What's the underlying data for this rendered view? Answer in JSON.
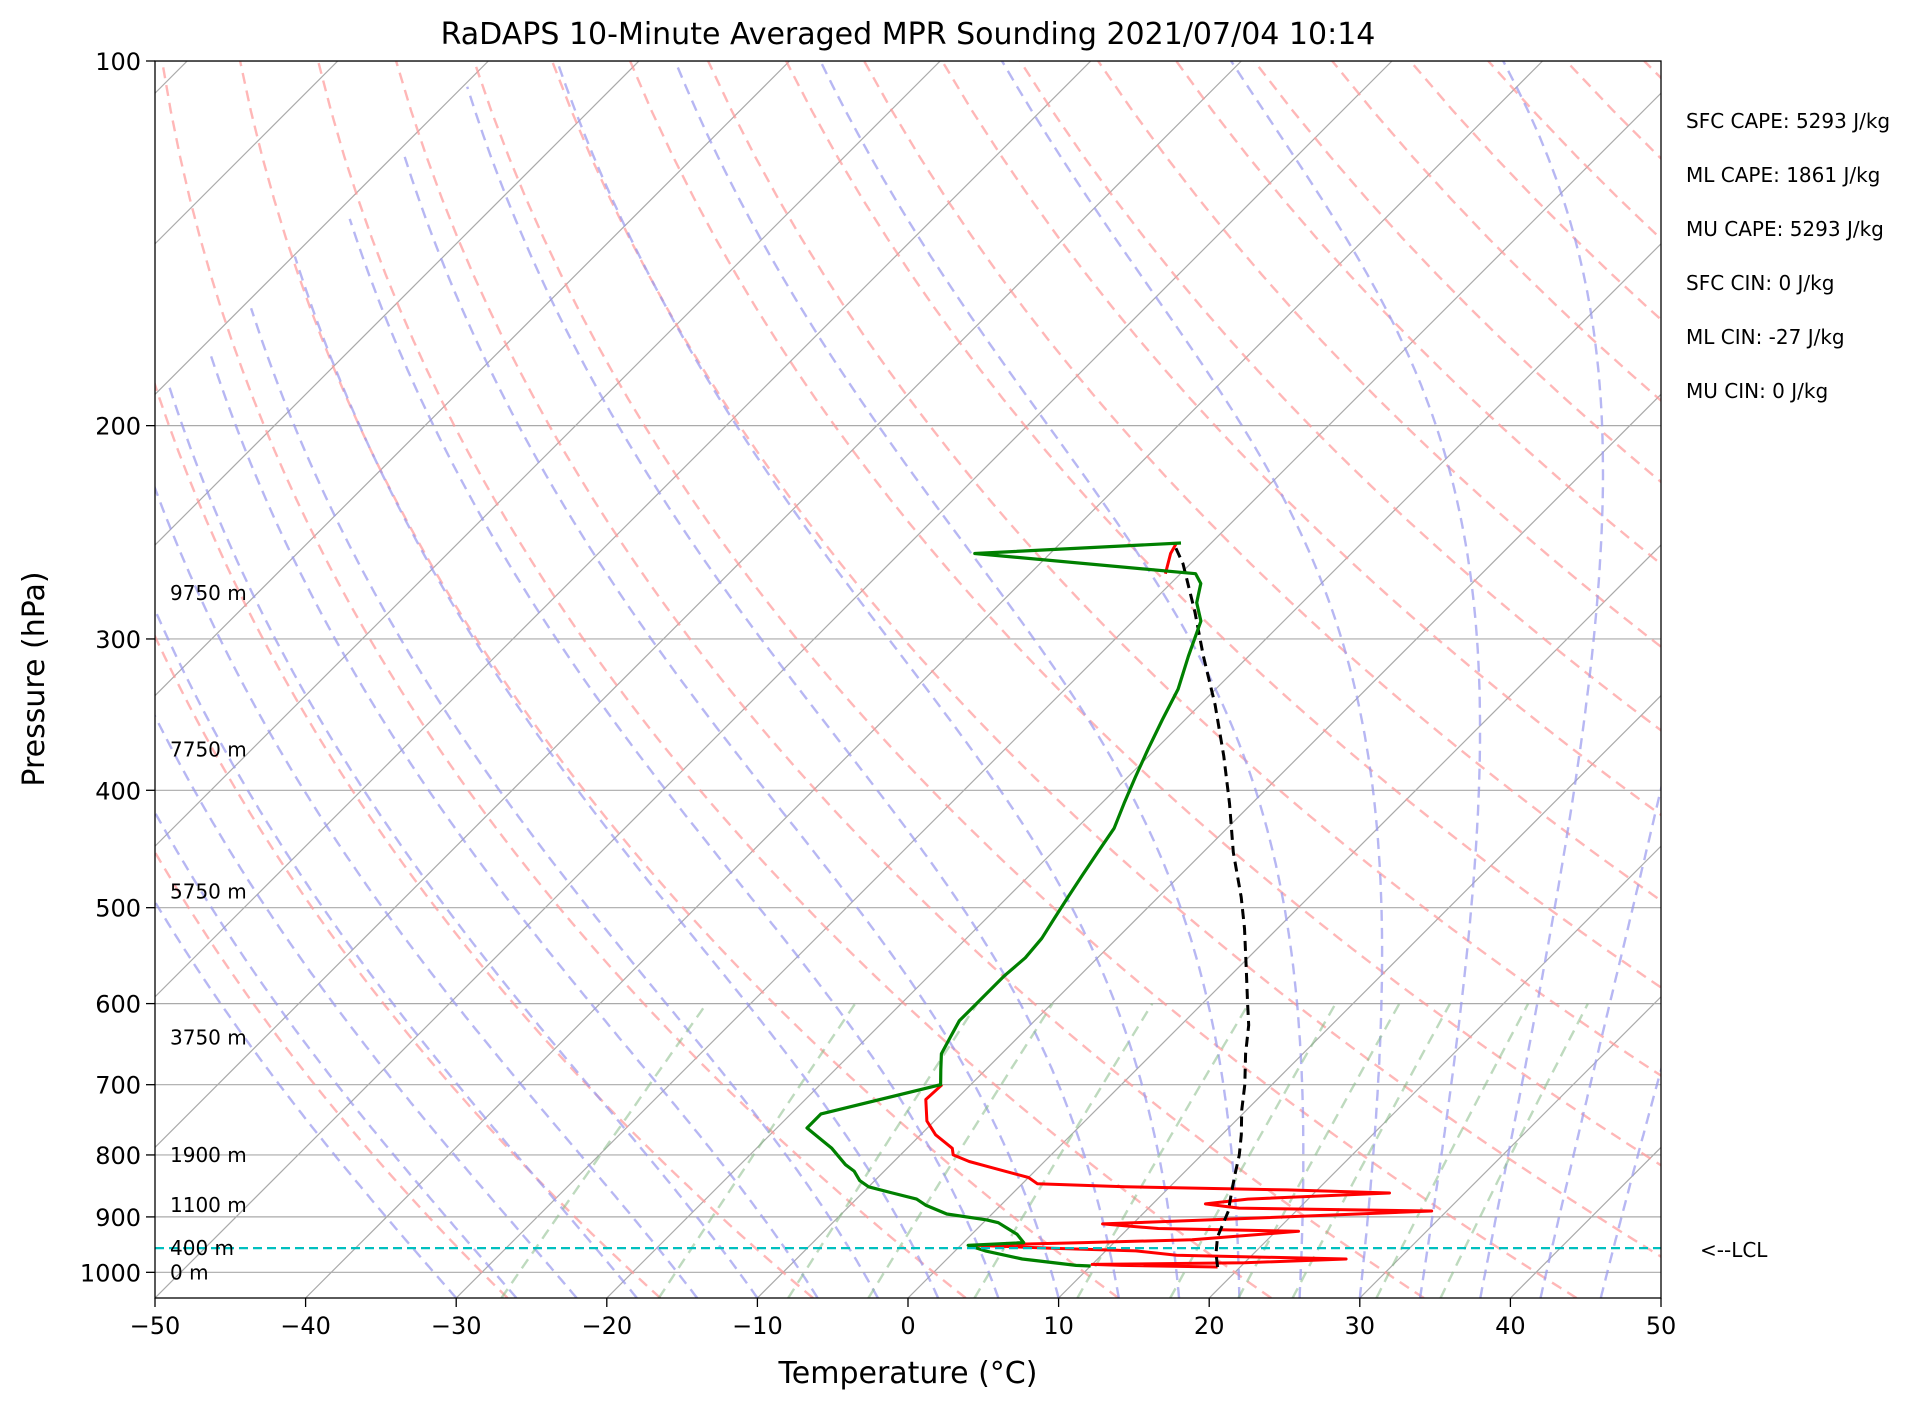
{
  "chart_data": {
    "type": "line",
    "title": "RaDAPS 10-Minute Averaged MPR Sounding 2021/07/04 10:14",
    "xlabel": "Temperature (°C)",
    "ylabel": "Pressure (hPa)",
    "xlim": [
      -50,
      50
    ],
    "ylim": [
      1050,
      100
    ],
    "y_scale": "log",
    "skew": "skew-T",
    "grid": true,
    "x_ticks": [
      -50,
      -40,
      -30,
      -20,
      -10,
      0,
      10,
      20,
      30,
      40,
      50
    ],
    "x_tick_labels": [
      "−50",
      "−40",
      "−30",
      "−20",
      "−10",
      "0",
      "10",
      "20",
      "30",
      "40",
      "50"
    ],
    "y_ticks": [
      100,
      200,
      300,
      400,
      500,
      600,
      700,
      800,
      900,
      1000
    ],
    "y_tick_labels": [
      "100",
      "200",
      "300",
      "400",
      "500",
      "600",
      "700",
      "800",
      "900",
      "1000"
    ],
    "colors": {
      "temperature": "#ff0000",
      "dewpoint": "#008000",
      "parcel": "#000000",
      "lcl": "#00bfbf",
      "isotherm": "#aaaaaa",
      "dry_adiabat": "#ff9999",
      "moist_adiabat": "#9999ee",
      "mixing_ratio": "#88bb88"
    },
    "series": [
      {
        "key": "temperature",
        "points": [
          [
            18.5,
            990
          ],
          [
            12,
            987
          ],
          [
            10,
            985
          ],
          [
            20,
            982
          ],
          [
            26.5,
            975
          ],
          [
            15,
            968
          ],
          [
            12,
            960
          ],
          [
            6,
            955
          ],
          [
            1,
            950
          ],
          [
            8,
            945
          ],
          [
            15,
            940
          ],
          [
            21.5,
            925
          ],
          [
            12,
            920
          ],
          [
            8,
            912
          ],
          [
            15,
            905
          ],
          [
            29,
            890
          ],
          [
            16,
            885
          ],
          [
            13.5,
            878
          ],
          [
            16,
            870
          ],
          [
            25,
            860
          ],
          [
            18,
            855
          ],
          [
            7,
            850
          ],
          [
            1,
            845
          ],
          [
            0,
            835
          ],
          [
            -3,
            820
          ],
          [
            -5,
            810
          ],
          [
            -6.5,
            800
          ],
          [
            -7,
            790
          ],
          [
            -9,
            770
          ],
          [
            -10.5,
            750
          ],
          [
            -12,
            720
          ],
          [
            -11.9,
            700
          ]
        ]
      },
      {
        "key": "temperature-top",
        "points": [
          [
            -31,
            265
          ],
          [
            -32,
            255
          ],
          [
            -32.3,
            250
          ]
        ]
      },
      {
        "key": "dewpoint",
        "points": [
          [
            10,
            988
          ],
          [
            9,
            987
          ],
          [
            5,
            975
          ],
          [
            2,
            960
          ],
          [
            0.5,
            950
          ],
          [
            4,
            945
          ],
          [
            3,
            930
          ],
          [
            2,
            920
          ],
          [
            1,
            910
          ],
          [
            0,
            905
          ],
          [
            -3,
            895
          ],
          [
            -5,
            880
          ],
          [
            -6,
            870
          ],
          [
            -8,
            860
          ],
          [
            -10,
            850
          ],
          [
            -11,
            840
          ],
          [
            -12,
            825
          ],
          [
            -13,
            815
          ],
          [
            -15,
            790
          ],
          [
            -18,
            760
          ],
          [
            -18,
            740
          ],
          [
            -12,
            700
          ],
          [
            -13,
            680
          ],
          [
            -14,
            660
          ],
          [
            -14.5,
            640
          ],
          [
            -15,
            620
          ],
          [
            -15,
            600
          ],
          [
            -15,
            570
          ],
          [
            -14.8,
            550
          ],
          [
            -15,
            530
          ],
          [
            -15.5,
            510
          ],
          [
            -16,
            490
          ],
          [
            -16.5,
            470
          ],
          [
            -17,
            450
          ],
          [
            -17.5,
            430
          ],
          [
            -18.5,
            410
          ],
          [
            -19.5,
            390
          ],
          [
            -20.5,
            370
          ],
          [
            -21.5,
            350
          ],
          [
            -22.5,
            330
          ],
          [
            -24,
            310
          ],
          [
            -25.5,
            290
          ],
          [
            -27,
            280
          ],
          [
            -28,
            270
          ],
          [
            -29,
            265
          ],
          [
            -45,
            255
          ],
          [
            -32,
            250
          ]
        ]
      },
      {
        "key": "parcel",
        "points": [
          [
            18.5,
            990
          ],
          [
            17.5,
            965
          ],
          [
            16.5,
            935
          ],
          [
            15.5,
            890
          ],
          [
            14.5,
            860
          ],
          [
            13.5,
            830
          ],
          [
            12.5,
            800
          ],
          [
            11.3,
            770
          ],
          [
            9.7,
            735
          ],
          [
            8.2,
            700
          ],
          [
            6.2,
            660
          ],
          [
            4.5,
            625
          ],
          [
            3,
            600
          ],
          [
            0.5,
            560
          ],
          [
            -2.2,
            520
          ],
          [
            -4.5,
            490
          ],
          [
            -8,
            450
          ],
          [
            -11.5,
            410
          ],
          [
            -15,
            375
          ],
          [
            -19,
            340
          ],
          [
            -23,
            310
          ],
          [
            -26.5,
            285
          ],
          [
            -30.5,
            260
          ],
          [
            -32.5,
            250
          ]
        ]
      }
    ],
    "lcl_pressure": 955,
    "lcl_label": "<--LCL",
    "height_labels": [
      {
        "text": "0 m",
        "p": 1000
      },
      {
        "text": "400 m",
        "p": 955
      },
      {
        "text": "1100 m",
        "p": 880
      },
      {
        "text": "1900 m",
        "p": 800
      },
      {
        "text": "3750 m",
        "p": 640
      },
      {
        "text": "5750 m",
        "p": 485
      },
      {
        "text": "7750 m",
        "p": 370
      },
      {
        "text": "9750 m",
        "p": 275
      }
    ],
    "annotations": [
      "SFC CAPE: 5293 J/kg",
      "ML CAPE: 1861 J/kg",
      "MU CAPE: 5293 J/kg",
      "SFC CIN: 0 J/kg",
      "ML CIN: -27 J/kg",
      "MU CIN: 0 J/kg"
    ]
  }
}
